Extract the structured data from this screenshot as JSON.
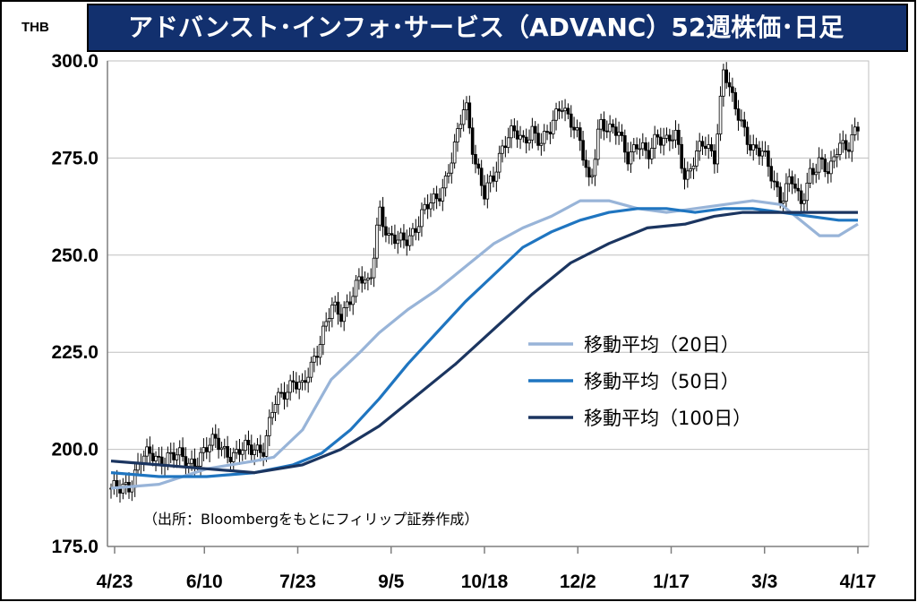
{
  "title": "アドバンスト･インフォ･サービス（ADVANC）52週株価･日足",
  "unit_label": "THB",
  "source_note": "（出所：Bloombergをもとにフィリップ証券作成）",
  "colors": {
    "title_bg": "#12306e",
    "candle": "#000000",
    "ma20": "#98b4d8",
    "ma50": "#1f75c0",
    "ma100": "#1b3560"
  },
  "chart_data": {
    "type": "line",
    "subtype": "candlestick-with-moving-averages",
    "ylim": [
      175.0,
      300.0
    ],
    "yticks": [
      "175.0",
      "200.0",
      "225.0",
      "250.0",
      "275.0",
      "300.0"
    ],
    "yticks_values": [
      175,
      200,
      225,
      250,
      275,
      300
    ],
    "xticks": [
      "4/23",
      "6/10",
      "7/23",
      "9/5",
      "10/18",
      "12/2",
      "1/17",
      "3/3",
      "4/17"
    ],
    "grid": true,
    "legend_position": "right-middle",
    "series": [
      {
        "name": "移動平均（20日）",
        "key": "ma20"
      },
      {
        "name": "移動平均（50日）",
        "key": "ma50"
      },
      {
        "name": "移動平均（100日）",
        "key": "ma100"
      }
    ],
    "price_close_points": [
      [
        0,
        190
      ],
      [
        1,
        189
      ],
      [
        2,
        191
      ],
      [
        3,
        198
      ],
      [
        4,
        198
      ],
      [
        5,
        197
      ],
      [
        6,
        199
      ],
      [
        7,
        198
      ],
      [
        8,
        196
      ],
      [
        9,
        198
      ],
      [
        10,
        200
      ],
      [
        11,
        202
      ],
      [
        12,
        200
      ],
      [
        13,
        198
      ],
      [
        14,
        200
      ],
      [
        15,
        201
      ],
      [
        16,
        200
      ],
      [
        17,
        211
      ],
      [
        18,
        215
      ],
      [
        19,
        218
      ],
      [
        20,
        215
      ],
      [
        21,
        222
      ],
      [
        22,
        230
      ],
      [
        23,
        236
      ],
      [
        24,
        234
      ],
      [
        25,
        240
      ],
      [
        26,
        244
      ],
      [
        27,
        241
      ],
      [
        28,
        263
      ],
      [
        29,
        254
      ],
      [
        30,
        253
      ],
      [
        31,
        255
      ],
      [
        32,
        258
      ],
      [
        33,
        262
      ],
      [
        34,
        265
      ],
      [
        35,
        270
      ],
      [
        36,
        278
      ],
      [
        37,
        290
      ],
      [
        38,
        275
      ],
      [
        39,
        265
      ],
      [
        40,
        270
      ],
      [
        41,
        280
      ],
      [
        42,
        282
      ],
      [
        43,
        278
      ],
      [
        44,
        283
      ],
      [
        45,
        279
      ],
      [
        46,
        282
      ],
      [
        47,
        290
      ],
      [
        48,
        285
      ],
      [
        49,
        278
      ],
      [
        50,
        268
      ],
      [
        51,
        285
      ],
      [
        52,
        281
      ],
      [
        53,
        282
      ],
      [
        54,
        276
      ],
      [
        55,
        278
      ],
      [
        56,
        275
      ],
      [
        57,
        282
      ],
      [
        58,
        279
      ],
      [
        59,
        280
      ],
      [
        60,
        270
      ],
      [
        61,
        276
      ],
      [
        62,
        278
      ],
      [
        63,
        275
      ],
      [
        64,
        299
      ],
      [
        65,
        288
      ],
      [
        66,
        283
      ],
      [
        67,
        278
      ],
      [
        68,
        276
      ],
      [
        69,
        270
      ],
      [
        70,
        265
      ],
      [
        71,
        270
      ],
      [
        72,
        262
      ],
      [
        73,
        272
      ],
      [
        74,
        274
      ],
      [
        75,
        270
      ],
      [
        76,
        280
      ],
      [
        77,
        278
      ],
      [
        78,
        282
      ]
    ],
    "ma20": [
      [
        0,
        190
      ],
      [
        5,
        191
      ],
      [
        10,
        195
      ],
      [
        15,
        197
      ],
      [
        17,
        198
      ],
      [
        20,
        205
      ],
      [
        23,
        218
      ],
      [
        26,
        225
      ],
      [
        28,
        230
      ],
      [
        31,
        236
      ],
      [
        34,
        241
      ],
      [
        37,
        247
      ],
      [
        40,
        253
      ],
      [
        43,
        257
      ],
      [
        46,
        260
      ],
      [
        49,
        264
      ],
      [
        52,
        264
      ],
      [
        55,
        262
      ],
      [
        58,
        261
      ],
      [
        61,
        262
      ],
      [
        64,
        263
      ],
      [
        67,
        264
      ],
      [
        70,
        263
      ],
      [
        72,
        259
      ],
      [
        74,
        255
      ],
      [
        76,
        255
      ],
      [
        78,
        258
      ]
    ],
    "ma50": [
      [
        0,
        194
      ],
      [
        5,
        193
      ],
      [
        10,
        193
      ],
      [
        15,
        194
      ],
      [
        19,
        196
      ],
      [
        22,
        199
      ],
      [
        25,
        205
      ],
      [
        28,
        213
      ],
      [
        31,
        222
      ],
      [
        34,
        230
      ],
      [
        37,
        238
      ],
      [
        40,
        245
      ],
      [
        43,
        252
      ],
      [
        46,
        256
      ],
      [
        49,
        259
      ],
      [
        52,
        261
      ],
      [
        55,
        262
      ],
      [
        58,
        262
      ],
      [
        61,
        261
      ],
      [
        64,
        262
      ],
      [
        67,
        262
      ],
      [
        70,
        261
      ],
      [
        73,
        260
      ],
      [
        76,
        259
      ],
      [
        78,
        259
      ]
    ],
    "ma100": [
      [
        0,
        197
      ],
      [
        5,
        196
      ],
      [
        10,
        195
      ],
      [
        15,
        194
      ],
      [
        20,
        196
      ],
      [
        24,
        200
      ],
      [
        28,
        206
      ],
      [
        32,
        214
      ],
      [
        36,
        222
      ],
      [
        40,
        231
      ],
      [
        44,
        240
      ],
      [
        48,
        248
      ],
      [
        52,
        253
      ],
      [
        56,
        257
      ],
      [
        60,
        258
      ],
      [
        63,
        260
      ],
      [
        66,
        261
      ],
      [
        69,
        261
      ],
      [
        72,
        261
      ],
      [
        75,
        261
      ],
      [
        78,
        261
      ]
    ],
    "x_domain": [
      0,
      78
    ]
  }
}
